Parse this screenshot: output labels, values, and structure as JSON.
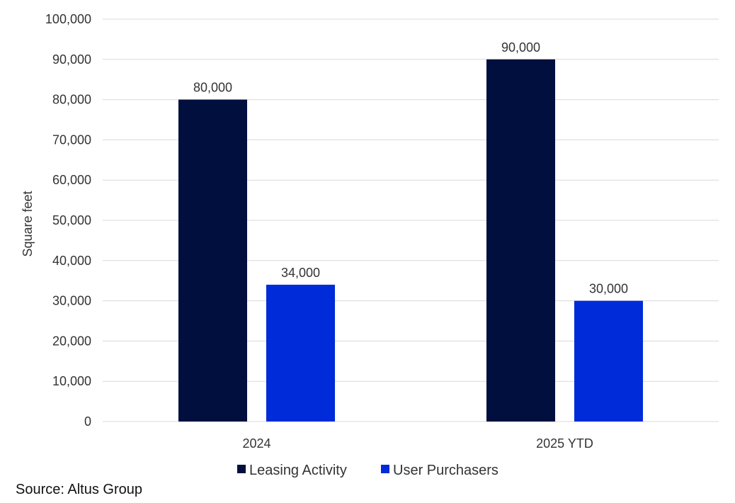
{
  "chart_data": {
    "type": "bar",
    "categories": [
      "2024",
      "2025 YTD"
    ],
    "series": [
      {
        "name": "Leasing Activity",
        "values": [
          80000,
          90000
        ],
        "color": "#000F3D"
      },
      {
        "name": "User Purchasers",
        "values": [
          34000,
          30000
        ],
        "color": "#002BD9"
      }
    ],
    "data_labels": [
      [
        "80,000",
        "90,000"
      ],
      [
        "34,000",
        "30,000"
      ]
    ],
    "ylabel": "Square feet",
    "ylim": [
      0,
      100000
    ],
    "yticks": [
      0,
      10000,
      20000,
      30000,
      40000,
      50000,
      60000,
      70000,
      80000,
      90000,
      100000
    ],
    "ytick_labels": [
      "0",
      "10,000",
      "20,000",
      "30,000",
      "40,000",
      "50,000",
      "60,000",
      "70,000",
      "80,000",
      "90,000",
      "100,000"
    ],
    "grid": true,
    "legend_position": "bottom"
  },
  "source": "Source: Altus Group"
}
